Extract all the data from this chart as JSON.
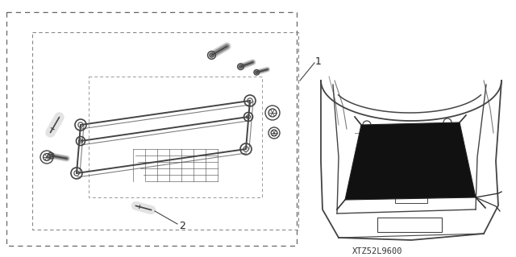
{
  "bg_color": "#ffffff",
  "fig_width": 6.4,
  "fig_height": 3.19,
  "dpi": 100,
  "label_1_text": "1",
  "label_2_text": "2",
  "code_text": "XTZ52L9600",
  "line_color": "#444444",
  "light_color": "#999999"
}
